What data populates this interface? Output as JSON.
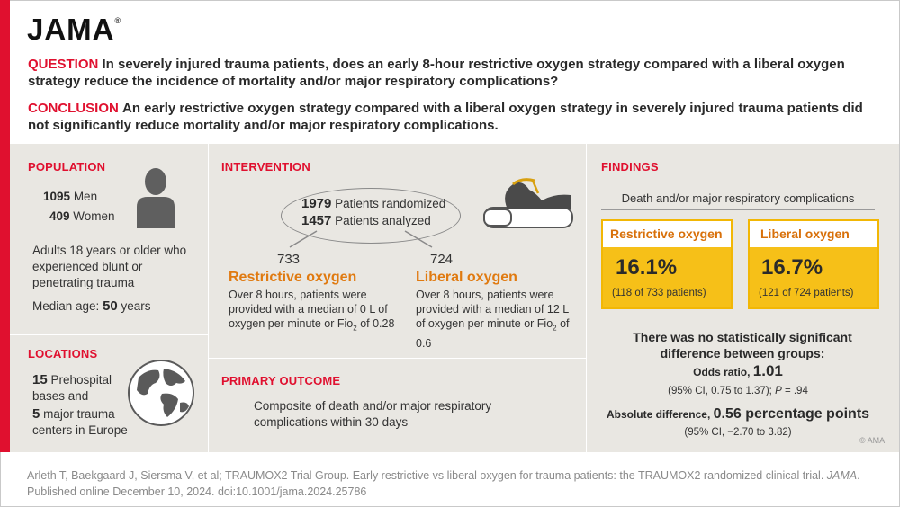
{
  "logo": "JAMA",
  "question": {
    "keyword": "QUESTION",
    "text": "In severely injured trauma patients, does an early 8-hour restrictive oxygen strategy compared with a liberal oxygen strategy reduce the incidence of mortality and/or major respiratory complications?"
  },
  "conclusion": {
    "keyword": "CONCLUSION",
    "text": "An early restrictive oxygen strategy compared with a liberal oxygen strategy in severely injured trauma patients did not significantly reduce mortality and/or major respiratory complications."
  },
  "population": {
    "heading": "POPULATION",
    "men_count": "1095",
    "men_label": "Men",
    "women_count": "409",
    "women_label": "Women",
    "desc": "Adults 18 years or older who experienced blunt or penetrating trauma",
    "median_label": "Median age:",
    "median_value": "50",
    "median_unit": "years"
  },
  "locations": {
    "heading": "LOCATIONS",
    "prehospital_count": "15",
    "prehospital_label": "Prehospital bases and",
    "centers_count": "5",
    "centers_label": "major trauma centers in Europe"
  },
  "intervention": {
    "heading": "INTERVENTION",
    "randomized_count": "1979",
    "randomized_label": "Patients randomized",
    "analyzed_count": "1457",
    "analyzed_label": "Patients analyzed",
    "arm1_n": "733",
    "arm1_name": "Restrictive oxygen",
    "arm1_desc_pre": "Over 8 hours, patients were provided with a median of 0 L of oxygen per minute or Fio",
    "arm1_desc_post": " of 0.28",
    "arm2_n": "724",
    "arm2_name": "Liberal oxygen",
    "arm2_desc_pre": "Over 8 hours, patients were provided with a median of 12 L of oxygen per minute or Fio",
    "arm2_desc_post": " of 0.6",
    "subscript": "2"
  },
  "outcome": {
    "heading": "PRIMARY OUTCOME",
    "text": "Composite of death and/or major respiratory complications within 30 days"
  },
  "findings": {
    "heading": "FINDINGS",
    "subtitle": "Death and/or major respiratory complications",
    "restrictive_label": "Restrictive oxygen",
    "restrictive_pct": "16.1%",
    "restrictive_sub": "(118 of 733 patients)",
    "liberal_label": "Liberal oxygen",
    "liberal_pct": "16.7%",
    "liberal_sub": "(121 of 724 patients)",
    "nodiff": "There was no statistically significant difference between groups:",
    "or_label": "Odds ratio,",
    "or_value": "1.01",
    "or_ci_pre": "(95% CI, 0.75 to 1.37);",
    "or_p_label": "P",
    "or_p_value": "= .94",
    "ad_label": "Absolute difference,",
    "ad_value": "0.56 percentage points",
    "ad_ci": "(95% CI, −2.70 to 3.82)",
    "copyright": "© AMA"
  },
  "citation": {
    "text": "Arleth T, Baekgaard J, Siersma V, et al; TRAUMOX2 Trial Group. Early restrictive vs liberal oxygen for trauma patients: the TRAUMOX2 randomized clinical trial.",
    "journal": "JAMA",
    "published": ". Published online December 10, 2024. doi:10.1001/jama.2024.25786"
  }
}
